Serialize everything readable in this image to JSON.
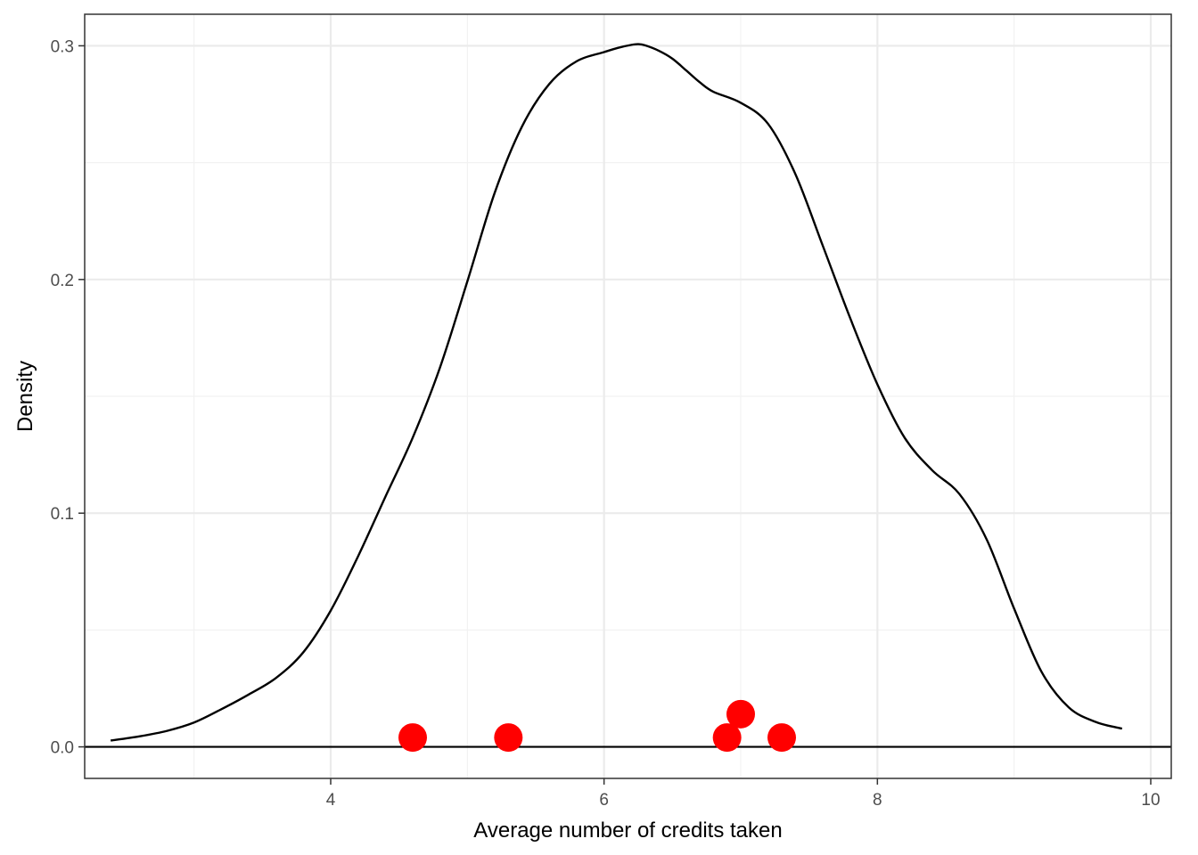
{
  "chart_data": {
    "type": "line",
    "title": "",
    "xlabel": "Average number of credits taken",
    "ylabel": "Density",
    "xlim": [
      2.2,
      10.15
    ],
    "ylim": [
      -0.0135,
      0.3135
    ],
    "x_ticks": [
      4,
      6,
      8,
      10
    ],
    "x_tick_labels": [
      "4",
      "6",
      "8",
      "10"
    ],
    "y_ticks": [
      0.0,
      0.1,
      0.2,
      0.3
    ],
    "y_tick_labels": [
      "0.0",
      "0.1",
      "0.2",
      "0.3"
    ],
    "x_minor_ticks": [
      3,
      5,
      7,
      9
    ],
    "y_minor_ticks": [
      0.05,
      0.15,
      0.25
    ],
    "grid": true,
    "hline_y": 0,
    "series": [
      {
        "kind": "density-curve",
        "color": "#000000",
        "x": [
          2.39,
          2.6,
          2.8,
          3.0,
          3.2,
          3.4,
          3.6,
          3.8,
          4.0,
          4.2,
          4.4,
          4.6,
          4.8,
          5.0,
          5.2,
          5.4,
          5.6,
          5.8,
          6.0,
          6.1,
          6.2,
          6.25,
          6.3,
          6.4,
          6.5,
          6.6,
          6.7,
          6.8,
          7.0,
          7.2,
          7.4,
          7.6,
          7.8,
          8.0,
          8.2,
          8.4,
          8.6,
          8.8,
          9.0,
          9.2,
          9.4,
          9.6,
          9.79
        ],
        "y": [
          0.0027,
          0.0045,
          0.0068,
          0.0104,
          0.0161,
          0.0224,
          0.0295,
          0.0405,
          0.0583,
          0.0815,
          0.107,
          0.1323,
          0.1624,
          0.1992,
          0.2371,
          0.2655,
          0.2837,
          0.2934,
          0.2973,
          0.2991,
          0.3004,
          0.3007,
          0.3002,
          0.2979,
          0.2945,
          0.2895,
          0.2844,
          0.2803,
          0.2756,
          0.2666,
          0.2451,
          0.2145,
          0.1836,
          0.1551,
          0.1322,
          0.1184,
          0.1082,
          0.0887,
          0.0592,
          0.0322,
          0.0169,
          0.0106,
          0.0078
        ]
      },
      {
        "kind": "points",
        "color": "#ff0000",
        "x": [
          4.6,
          5.3,
          6.9,
          7.0,
          7.3
        ],
        "y": [
          0.004,
          0.004,
          0.004,
          0.014,
          0.004
        ]
      }
    ],
    "colors": {
      "panel_border": "#333333",
      "grid_major": "#ebebeb",
      "grid_minor": "#f2f2f2",
      "tick_label": "#4d4d4d"
    }
  }
}
